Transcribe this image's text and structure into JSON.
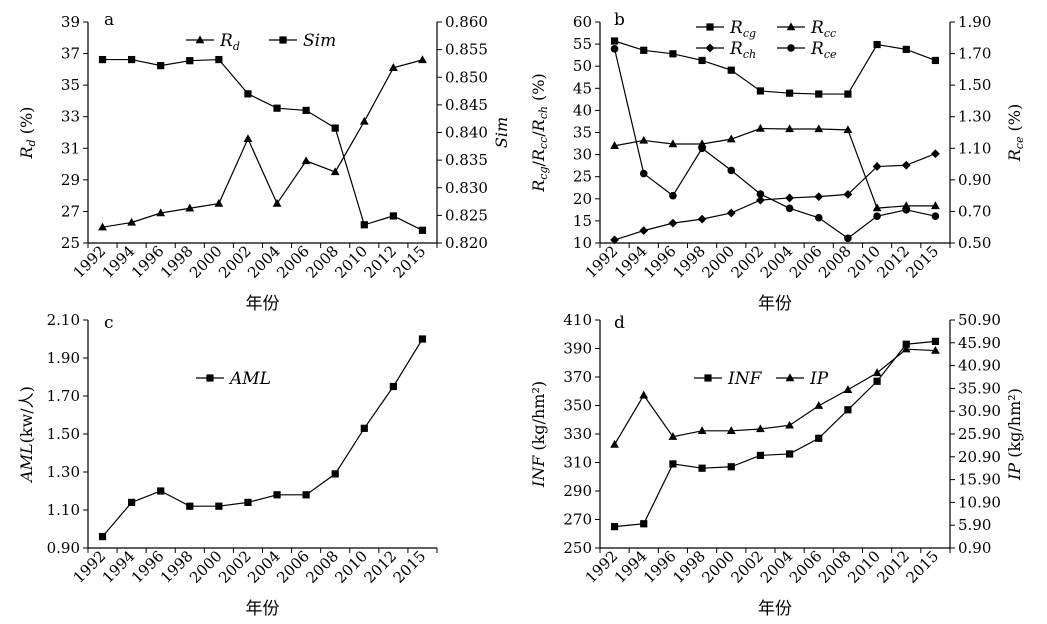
{
  "chart_data": [
    {
      "panel": "a",
      "type": "line",
      "x_title": "年份",
      "categories": [
        "1992",
        "1994",
        "1996",
        "1998",
        "2000",
        "2002",
        "2004",
        "2006",
        "2008",
        "2010",
        "2012",
        "2015"
      ],
      "left_axis": {
        "label": "R_d (%)",
        "ylim": [
          25,
          39
        ],
        "ticks": [
          "25",
          "27",
          "29",
          "31",
          "33",
          "35",
          "37",
          "39"
        ]
      },
      "right_axis": {
        "label": "Sim",
        "ylim": [
          0.82,
          0.86
        ],
        "ticks": [
          "0.820",
          "0.825",
          "0.830",
          "0.835",
          "0.840",
          "0.845",
          "0.850",
          "0.855",
          "0.860"
        ]
      },
      "series": [
        {
          "name": "R_d",
          "marker": "triangle",
          "axis": "left",
          "values": [
            26.0,
            26.3,
            26.9,
            27.2,
            27.5,
            31.6,
            27.5,
            30.2,
            29.5,
            32.7,
            36.1,
            36.6
          ]
        },
        {
          "name": "Sim",
          "marker": "square",
          "axis": "right",
          "values": [
            0.8532,
            0.8532,
            0.8521,
            0.853,
            0.8532,
            0.847,
            0.8444,
            0.844,
            0.8408,
            0.8233,
            0.8249,
            0.8223
          ]
        }
      ],
      "legend": "top-center"
    },
    {
      "panel": "b",
      "type": "line",
      "x_title": "年份",
      "categories": [
        "1992",
        "1994",
        "1996",
        "1998",
        "2000",
        "2002",
        "2004",
        "2006",
        "2008",
        "2010",
        "2012",
        "2015"
      ],
      "left_axis": {
        "label": "R_cg/R_cc/R_ch (%)",
        "ylim": [
          10,
          60
        ],
        "ticks": [
          "10",
          "15",
          "20",
          "25",
          "30",
          "35",
          "40",
          "45",
          "50",
          "55",
          "60"
        ]
      },
      "right_axis": {
        "label": "R_ce (%)",
        "ylim": [
          0.5,
          1.9
        ],
        "ticks": [
          "0.50",
          "0.70",
          "0.90",
          "1.10",
          "1.30",
          "1.50",
          "1.70",
          "1.90"
        ]
      },
      "series": [
        {
          "name": "R_cg",
          "marker": "square",
          "axis": "left",
          "values": [
            55.7,
            53.6,
            52.8,
            51.3,
            49.1,
            44.4,
            43.9,
            43.7,
            43.7,
            54.9,
            53.8,
            51.3
          ]
        },
        {
          "name": "R_cc",
          "marker": "triangle",
          "axis": "left",
          "values": [
            32.0,
            33.2,
            32.4,
            32.4,
            33.5,
            35.9,
            35.8,
            35.8,
            35.6,
            17.9,
            18.4,
            18.4
          ]
        },
        {
          "name": "R_ch",
          "marker": "diamond",
          "axis": "left",
          "values": [
            10.7,
            12.8,
            14.5,
            15.4,
            16.8,
            19.7,
            20.2,
            20.5,
            21.0,
            27.3,
            27.6,
            30.2
          ]
        },
        {
          "name": "R_ce",
          "marker": "circle",
          "axis": "right",
          "values": [
            1.73,
            0.94,
            0.8,
            1.1,
            0.96,
            0.81,
            0.72,
            0.66,
            0.53,
            0.67,
            0.71,
            0.67
          ]
        }
      ],
      "legend": "top-center"
    },
    {
      "panel": "c",
      "type": "line",
      "x_title": "年份",
      "categories": [
        "1992",
        "1994",
        "1996",
        "1998",
        "2000",
        "2002",
        "2004",
        "2006",
        "2008",
        "2010",
        "2012",
        "2015"
      ],
      "left_axis": {
        "label": "AML(kw/人)",
        "ylim": [
          0.9,
          2.1
        ],
        "ticks": [
          "0.90",
          "1.10",
          "1.30",
          "1.50",
          "1.70",
          "1.90",
          "2.10"
        ]
      },
      "series": [
        {
          "name": "AML",
          "marker": "square",
          "axis": "left",
          "values": [
            0.96,
            1.14,
            1.2,
            1.12,
            1.12,
            1.14,
            1.18,
            1.18,
            1.29,
            1.53,
            1.75,
            2.0
          ]
        }
      ],
      "legend": "top-center"
    },
    {
      "panel": "d",
      "type": "line",
      "x_title": "年份",
      "categories": [
        "1992",
        "1994",
        "1996",
        "1998",
        "2000",
        "2002",
        "2004",
        "2006",
        "2008",
        "2010",
        "2012",
        "2015"
      ],
      "left_axis": {
        "label": "INF (kg/hm²)",
        "ylim": [
          250,
          410
        ],
        "ticks": [
          "250",
          "270",
          "290",
          "310",
          "330",
          "350",
          "370",
          "390",
          "410"
        ]
      },
      "right_axis": {
        "label": "IP (kg/hm²)",
        "ylim": [
          0.9,
          50.9
        ],
        "ticks": [
          "0.90",
          "5.90",
          "10.90",
          "15.90",
          "20.90",
          "25.90",
          "30.90",
          "35.90",
          "40.90",
          "45.90",
          "50.90"
        ]
      },
      "series": [
        {
          "name": "INF",
          "marker": "square",
          "axis": "left",
          "values": [
            265,
            267,
            309,
            306,
            307,
            315,
            316,
            327,
            347,
            367,
            393,
            395
          ]
        },
        {
          "name": "IP",
          "marker": "triangle",
          "axis": "right",
          "values": [
            23.6,
            34.4,
            25.3,
            26.6,
            26.6,
            27.0,
            27.8,
            32.1,
            35.6,
            39.3,
            44.5,
            44.2
          ]
        }
      ],
      "legend": "top-center"
    }
  ]
}
